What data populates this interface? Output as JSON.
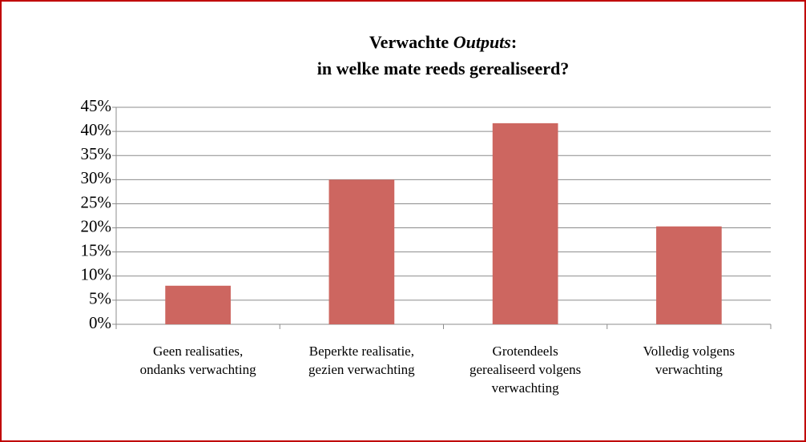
{
  "chart_data": {
    "type": "bar",
    "title": [
      [
        "Verwachte ",
        "Outputs",
        ":"
      ],
      "in welke mate reeds gerealiseerd?"
    ],
    "categories": [
      [
        "Geen realisaties,",
        "ondanks verwachting"
      ],
      [
        "Beperkte realisatie,",
        "gezien verwachting"
      ],
      [
        "Grotendeels",
        "gerealiseerd volgens",
        "verwachting"
      ],
      [
        "Volledig volgens",
        "verwachting"
      ]
    ],
    "values": [
      8,
      30,
      41.7,
      20.3
    ],
    "color": "#cd6660",
    "ylim": [
      0,
      45
    ],
    "yticks": [
      {
        "value": 0,
        "label": "0%"
      },
      {
        "value": 5,
        "label": "5%"
      },
      {
        "value": 10,
        "label": "10%"
      },
      {
        "value": 15,
        "label": "15%"
      },
      {
        "value": 20,
        "label": "20%"
      },
      {
        "value": 25,
        "label": "25%"
      },
      {
        "value": 30,
        "label": "30%"
      },
      {
        "value": 35,
        "label": "35%"
      },
      {
        "value": 40,
        "label": "40%"
      },
      {
        "value": 45,
        "label": "45%"
      }
    ],
    "grid": true
  }
}
